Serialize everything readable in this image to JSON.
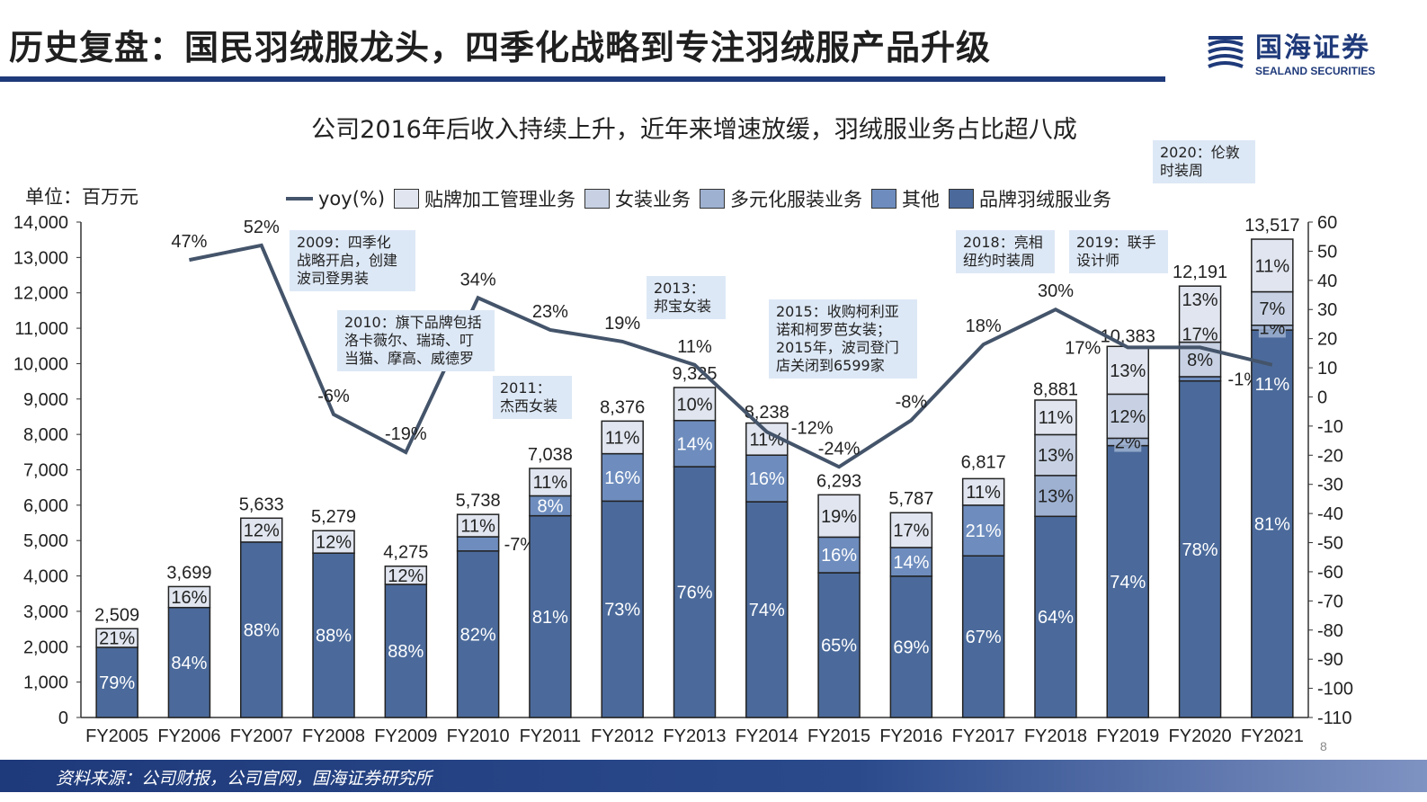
{
  "header": {
    "title": "历史复盘：国民羽绒服龙头，四季化战略到专注羽绒服产品升级",
    "logo_cn": "国海证券",
    "logo_en": "SEALAND SECURITIES"
  },
  "colors": {
    "brand": "#1f3a7a",
    "line": "#44546a",
    "品牌羽绒服业务": "#4b6a9b",
    "其他": "#6e8dbe",
    "多元化服装业务": "#9eb1d1",
    "女装业务": "#c7d1e3",
    "贴牌加工管理业务": "#e0e5ef"
  },
  "chart_data": {
    "type": "bar+line",
    "title": "公司2016年后收入持续上升，近年来增速放缓，羽绒服业务占比超八成",
    "unit_label": "单位：百万元",
    "legend_position": "top",
    "legend": [
      "yoy(%)",
      "贴牌加工管理业务",
      "女装业务",
      "多元化服装业务",
      "其他",
      "品牌羽绒服业务"
    ],
    "categories": [
      "FY2005",
      "FY2006",
      "FY2007",
      "FY2008",
      "FY2009",
      "FY2010",
      "FY2011",
      "FY2012",
      "FY2013",
      "FY2014",
      "FY2015",
      "FY2016",
      "FY2017",
      "FY2018",
      "FY2019",
      "FY2020",
      "FY2021"
    ],
    "totals": [
      2509,
      3699,
      5633,
      5279,
      4275,
      5738,
      7038,
      8376,
      9325,
      8238,
      6293,
      5787,
      6817,
      8881,
      10383,
      12191,
      13517
    ],
    "totals_labels": [
      "2,509",
      "3,699",
      "5,633",
      "5,279",
      "4,275",
      "5,738",
      "7,038",
      "8,376",
      "9,325",
      "8,238",
      "6,293",
      "5,787",
      "6,817",
      "8,881",
      "10,383",
      "12,191",
      "13,517"
    ],
    "share_series": [
      {
        "name": "品牌羽绒服业务",
        "values": [
          79,
          84,
          88,
          88,
          88,
          82,
          81,
          73,
          76,
          74,
          65,
          69,
          67,
          64,
          74,
          78,
          81
        ]
      },
      {
        "name": "其他",
        "values": [
          0,
          0,
          0,
          0,
          0,
          7,
          8,
          16,
          14,
          16,
          16,
          14,
          21,
          0,
          0,
          1,
          0
        ]
      },
      {
        "name": "多元化服装业务",
        "values": [
          0,
          0,
          0,
          0,
          0,
          0,
          0,
          0,
          0,
          0,
          0,
          0,
          0,
          13,
          2,
          0,
          1
        ]
      },
      {
        "name": "女装业务",
        "values": [
          0,
          0,
          0,
          0,
          0,
          0,
          0,
          0,
          0,
          0,
          0,
          0,
          0,
          13,
          12,
          8,
          7
        ]
      },
      {
        "name": "贴牌加工管理业务",
        "values": [
          21,
          16,
          12,
          12,
          12,
          11,
          11,
          11,
          10,
          11,
          19,
          17,
          11,
          11,
          13,
          13,
          11
        ]
      }
    ],
    "yoy": {
      "name": "yoy(%)",
      "values": [
        null,
        47,
        52,
        -6,
        -19,
        34,
        23,
        19,
        11,
        -12,
        -24,
        -8,
        18,
        30,
        17,
        17,
        11
      ]
    },
    "y_left": {
      "min": 0,
      "max": 14000,
      "step": 1000
    },
    "y_right": {
      "min": -110,
      "max": 60,
      "step": 10
    },
    "grid": false
  },
  "annotations": [
    {
      "text": "2009：四季化\n战略开启，创建\n波司登男装"
    },
    {
      "text": "2010：旗下品牌包括\n洛卡薇尔、瑞琦、叮\n当猫、摩高、威德罗"
    },
    {
      "text": "2011：\n杰西女装"
    },
    {
      "text": "2013：\n邦宝女装"
    },
    {
      "text": "2015：收购柯利亚\n诺和柯罗芭女装；\n2015年，波司登门\n店关闭到6599家"
    },
    {
      "text": "2018：亮相\n纽约时装周"
    },
    {
      "text": "2019：联手\n设计师"
    },
    {
      "text": "2020：伦敦\n时装周"
    }
  ],
  "footer": {
    "source": "资料来源：公司财报，公司官网，国海证券研究所",
    "page": "8"
  }
}
